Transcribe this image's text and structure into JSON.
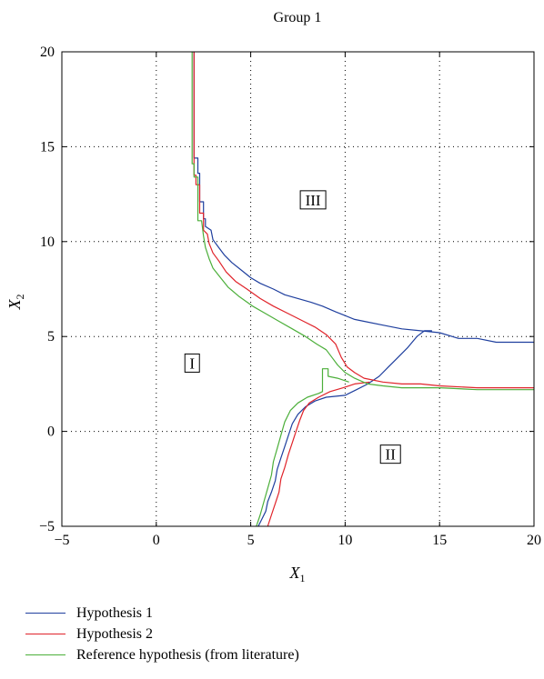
{
  "chart_data": {
    "type": "line",
    "title": "Group 1",
    "xlabel": "X",
    "xlabel_sub": "1",
    "ylabel": "X",
    "ylabel_sub": "2",
    "xlim": [
      -5,
      20
    ],
    "ylim": [
      -5,
      20
    ],
    "xticks": [
      -5,
      0,
      5,
      10,
      15,
      20
    ],
    "yticks": [
      -5,
      0,
      5,
      10,
      15,
      20
    ],
    "grid": true,
    "legend_position": "bottom-outside",
    "regions": [
      {
        "label": "I",
        "x": 1.9,
        "y": 3.6
      },
      {
        "label": "II",
        "x": 12.4,
        "y": -1.2
      },
      {
        "label": "III",
        "x": 8.3,
        "y": 12.2
      }
    ],
    "series": [
      {
        "name": "Hypothesis 1",
        "color": "#1f3f9e",
        "segments": [
          [
            [
              2.0,
              20
            ],
            [
              2.0,
              14.4
            ],
            [
              2.2,
              14.4
            ],
            [
              2.2,
              13.6
            ],
            [
              2.3,
              13.6
            ],
            [
              2.3,
              12.1
            ],
            [
              2.5,
              12.1
            ],
            [
              2.5,
              11.2
            ],
            [
              2.6,
              11.2
            ],
            [
              2.6,
              10.8
            ],
            [
              2.9,
              10.6
            ],
            [
              3.0,
              10.1
            ],
            [
              3.3,
              9.7
            ],
            [
              3.6,
              9.3
            ],
            [
              4.0,
              8.9
            ],
            [
              4.5,
              8.5
            ],
            [
              5.0,
              8.1
            ],
            [
              5.5,
              7.8
            ],
            [
              6.2,
              7.5
            ],
            [
              6.8,
              7.2
            ],
            [
              7.5,
              7.0
            ],
            [
              8.2,
              6.8
            ],
            [
              8.8,
              6.6
            ],
            [
              9.5,
              6.3
            ],
            [
              10.0,
              6.1
            ],
            [
              10.5,
              5.9
            ],
            [
              11.0,
              5.8
            ],
            [
              12.0,
              5.6
            ],
            [
              13.0,
              5.4
            ],
            [
              14.0,
              5.3
            ],
            [
              15.0,
              5.2
            ],
            [
              16.0,
              4.9
            ],
            [
              17.0,
              4.9
            ],
            [
              18.0,
              4.7
            ],
            [
              20.0,
              4.7
            ]
          ],
          [
            [
              5.4,
              -5.0
            ],
            [
              5.6,
              -4.6
            ],
            [
              5.8,
              -4.2
            ],
            [
              5.9,
              -3.7
            ],
            [
              6.1,
              -3.2
            ],
            [
              6.3,
              -2.6
            ],
            [
              6.4,
              -2.0
            ],
            [
              6.6,
              -1.4
            ],
            [
              6.8,
              -0.8
            ],
            [
              7.0,
              -0.2
            ],
            [
              7.2,
              0.4
            ],
            [
              7.5,
              0.9
            ],
            [
              7.9,
              1.3
            ],
            [
              8.4,
              1.6
            ],
            [
              9.0,
              1.8
            ],
            [
              10.0,
              1.9
            ],
            [
              10.6,
              2.2
            ],
            [
              11.2,
              2.5
            ],
            [
              11.8,
              2.9
            ],
            [
              12.3,
              3.4
            ],
            [
              12.8,
              3.9
            ],
            [
              13.3,
              4.4
            ],
            [
              13.8,
              5.0
            ],
            [
              14.2,
              5.3
            ],
            [
              14.6,
              5.3
            ]
          ]
        ]
      },
      {
        "name": "Hypothesis 2",
        "color": "#e0232a",
        "segments": [
          [
            [
              2.0,
              20
            ],
            [
              2.0,
              13.5
            ],
            [
              2.1,
              13.5
            ],
            [
              2.1,
              13.0
            ],
            [
              2.3,
              13.0
            ],
            [
              2.3,
              11.5
            ],
            [
              2.5,
              11.5
            ],
            [
              2.5,
              10.6
            ],
            [
              2.7,
              10.4
            ],
            [
              2.8,
              9.9
            ],
            [
              3.0,
              9.4
            ],
            [
              3.3,
              9.0
            ],
            [
              3.7,
              8.4
            ],
            [
              4.2,
              7.9
            ],
            [
              4.8,
              7.5
            ],
            [
              5.5,
              7.0
            ],
            [
              6.2,
              6.6
            ],
            [
              7.0,
              6.2
            ],
            [
              7.8,
              5.8
            ],
            [
              8.4,
              5.5
            ],
            [
              9.0,
              5.1
            ],
            [
              9.5,
              4.6
            ],
            [
              9.8,
              3.9
            ],
            [
              10.1,
              3.4
            ],
            [
              10.5,
              3.1
            ],
            [
              11.0,
              2.8
            ],
            [
              12.0,
              2.6
            ],
            [
              13.0,
              2.5
            ],
            [
              14.0,
              2.5
            ],
            [
              15.0,
              2.4
            ],
            [
              17.0,
              2.3
            ],
            [
              20.0,
              2.3
            ]
          ],
          [
            [
              5.9,
              -5.0
            ],
            [
              6.1,
              -4.4
            ],
            [
              6.3,
              -3.8
            ],
            [
              6.5,
              -3.2
            ],
            [
              6.6,
              -2.5
            ],
            [
              6.8,
              -1.9
            ],
            [
              7.0,
              -1.2
            ],
            [
              7.2,
              -0.6
            ],
            [
              7.4,
              0.0
            ],
            [
              7.6,
              0.6
            ],
            [
              7.8,
              1.1
            ],
            [
              8.1,
              1.5
            ],
            [
              8.6,
              1.8
            ],
            [
              9.2,
              2.1
            ],
            [
              9.9,
              2.3
            ],
            [
              10.5,
              2.5
            ],
            [
              11.3,
              2.6
            ]
          ]
        ]
      },
      {
        "name": "Reference hypothesis (from literature)",
        "color": "#4caf3a",
        "segments": [
          [
            [
              1.9,
              20
            ],
            [
              1.9,
              14.1
            ],
            [
              2.0,
              14.1
            ],
            [
              2.0,
              13.4
            ],
            [
              2.2,
              13.4
            ],
            [
              2.2,
              11.1
            ],
            [
              2.4,
              11.1
            ],
            [
              2.5,
              10.3
            ],
            [
              2.6,
              9.7
            ],
            [
              2.8,
              9.1
            ],
            [
              3.0,
              8.6
            ],
            [
              3.4,
              8.1
            ],
            [
              3.8,
              7.6
            ],
            [
              4.4,
              7.1
            ],
            [
              5.1,
              6.6
            ],
            [
              5.8,
              6.2
            ],
            [
              6.5,
              5.8
            ],
            [
              7.2,
              5.4
            ],
            [
              7.9,
              5.0
            ],
            [
              8.5,
              4.6
            ],
            [
              9.0,
              4.3
            ],
            [
              9.3,
              3.9
            ],
            [
              9.6,
              3.5
            ],
            [
              10.0,
              3.1
            ],
            [
              10.5,
              2.8
            ],
            [
              11.2,
              2.5
            ],
            [
              12.0,
              2.4
            ],
            [
              13.0,
              2.3
            ],
            [
              14.0,
              2.3
            ],
            [
              15.0,
              2.3
            ],
            [
              17.0,
              2.2
            ],
            [
              20.0,
              2.2
            ]
          ],
          [
            [
              5.3,
              -5.0
            ],
            [
              5.5,
              -4.4
            ],
            [
              5.7,
              -3.7
            ],
            [
              5.9,
              -3.0
            ],
            [
              6.1,
              -2.3
            ],
            [
              6.2,
              -1.6
            ],
            [
              6.4,
              -0.9
            ],
            [
              6.6,
              -0.2
            ],
            [
              6.8,
              0.5
            ],
            [
              7.1,
              1.1
            ],
            [
              7.5,
              1.5
            ],
            [
              8.0,
              1.8
            ],
            [
              8.6,
              2.0
            ],
            [
              8.8,
              2.1
            ],
            [
              8.8,
              3.3
            ],
            [
              9.1,
              3.3
            ],
            [
              9.1,
              2.9
            ],
            [
              9.6,
              2.8
            ],
            [
              10.2,
              2.6
            ]
          ]
        ]
      }
    ]
  }
}
